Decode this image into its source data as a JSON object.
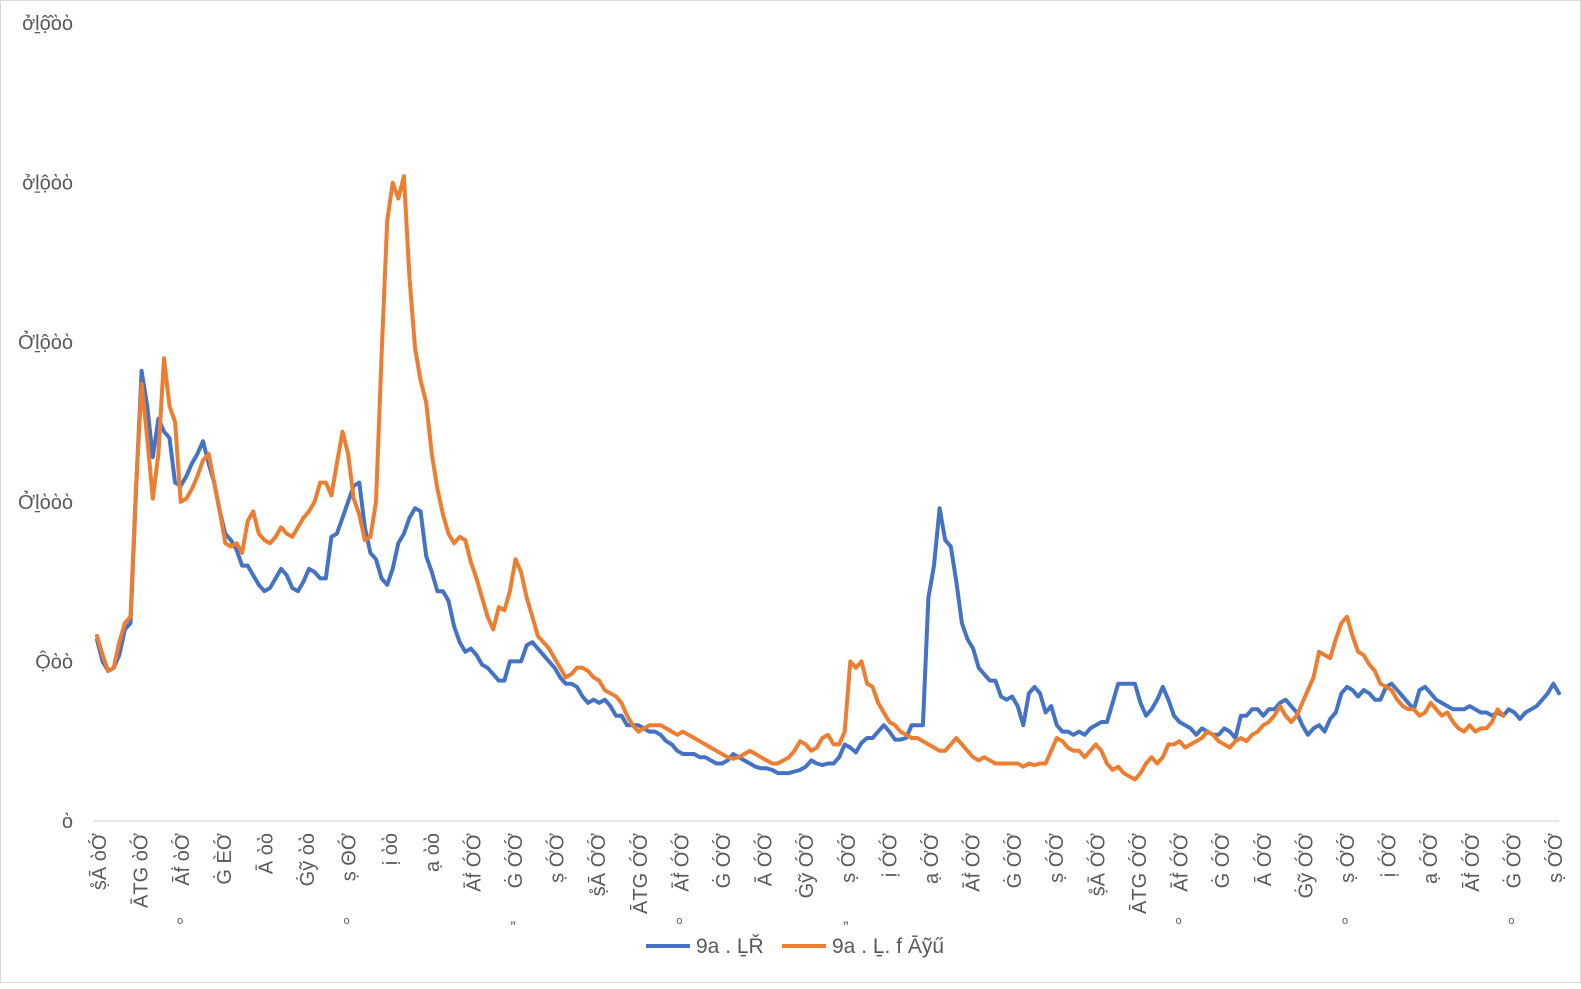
{
  "chart_data": {
    "type": "line",
    "title": "",
    "xlabel": "",
    "ylabel": "",
    "ylim": [
      0,
      2500
    ],
    "y_ticks": [
      {
        "value": 0,
        "label": "ὸ"
      },
      {
        "value": 500,
        "label": "Ộὸὸ"
      },
      {
        "value": 1000,
        "label": "Ởḻὸὸὸ"
      },
      {
        "value": 1500,
        "label": "Ởḻộὸὸ"
      },
      {
        "value": 2000,
        "label": "ởḻộὸὸ"
      },
      {
        "value": 2500,
        "label": "ởḻộ̂ὸὸ"
      }
    ],
    "x_tick_labels": [
      "ṣ̊Ā ὸỚ",
      "ĀTG ὸỚ",
      "Āḟ ὸỚ",
      "Ġ ÈỚ",
      "Ā ὸὸ",
      "Ġỹ ὸὸ",
      "ṣ ΘỚ",
      "ị ὸὸ",
      "ạ ὸὸ",
      "Āḟ ỚỚ",
      "Ġ ỚỚ",
      "ṣ ỚỚ",
      "ṣ̊Ā ỚỚ",
      "ĀTG ỚỚ",
      "Āḟ ỚỚ",
      "Ġ ỚỚ",
      "Ā ỚỚ",
      "Ġỹ ỚỚ",
      "ṣ ỚỚ",
      "ị ỚỚ",
      "ạ ỚỚ",
      "Āḟ ỚỚ",
      "Ġ ỚỚ",
      "ṣ ỚỚ",
      "ṣ̊Ā ỚỚ",
      "ĀTG ỚỚ",
      "Āḟ ỚỚ",
      "Ġ ỚỚ",
      "Ā ỚỚ",
      "Ġỹ ỚỚ",
      "ṣ ỚỚ",
      "ị ỚỚ",
      "ạ ỚỚ",
      "Āḟ ỚỚ",
      "Ġ ỚỚ",
      "ṣ ỚỚ"
    ],
    "x_tick_sublabels": [
      "ₒ",
      "ₒ",
      "ₒ",
      "„",
      "ₒ",
      "ₒ",
      "ₒ",
      "„"
    ],
    "series": [
      {
        "name": "9a . ḺŘ",
        "color": "#4472c4",
        "values": [
          568,
          500,
          470,
          480,
          520,
          600,
          620,
          1040,
          1410,
          1300,
          1140,
          1260,
          1220,
          1200,
          1060,
          1050,
          1080,
          1120,
          1150,
          1190,
          1120,
          1060,
          970,
          900,
          880,
          850,
          800,
          800,
          770,
          740,
          720,
          730,
          760,
          790,
          770,
          730,
          720,
          750,
          790,
          780,
          760,
          760,
          890,
          900,
          950,
          1000,
          1050,
          1060,
          920,
          840,
          820,
          760,
          740,
          790,
          870,
          900,
          950,
          980,
          970,
          830,
          780,
          720,
          720,
          690,
          610,
          560,
          530,
          540,
          520,
          490,
          480,
          460,
          440,
          440,
          500,
          500,
          500,
          550,
          560,
          540,
          520,
          500,
          480,
          450,
          430,
          430,
          420,
          390,
          370,
          380,
          370,
          380,
          360,
          330,
          330,
          300,
          300,
          300,
          290,
          280,
          280,
          270,
          250,
          240,
          220,
          210,
          210,
          210,
          200,
          200,
          190,
          180,
          180,
          190,
          210,
          200,
          190,
          180,
          170,
          165,
          165,
          160,
          150,
          150,
          150,
          155,
          160,
          170,
          190,
          180,
          175,
          180,
          180,
          200,
          240,
          230,
          215,
          245,
          260,
          260,
          280,
          300,
          280,
          255,
          255,
          260,
          300,
          300,
          300,
          700,
          800,
          980,
          880,
          860,
          750,
          620,
          570,
          540,
          480,
          460,
          440,
          440,
          390,
          380,
          390,
          360,
          300,
          400,
          420,
          400,
          340,
          360,
          300,
          280,
          280,
          270,
          280,
          270,
          290,
          300,
          310,
          310,
          370,
          430,
          430,
          430,
          430,
          370,
          330,
          350,
          380,
          420,
          380,
          330,
          310,
          300,
          290,
          270,
          290,
          280,
          270,
          270,
          290,
          280,
          260,
          330,
          330,
          350,
          350,
          330,
          350,
          350,
          370,
          380,
          360,
          340,
          300,
          270,
          290,
          300,
          280,
          320,
          340,
          400,
          420,
          410,
          390,
          410,
          400,
          380,
          380,
          420,
          430,
          410,
          390,
          370,
          350,
          410,
          420,
          400,
          380,
          370,
          360,
          350,
          350,
          350,
          360,
          350,
          340,
          340,
          330,
          340,
          330,
          350,
          340,
          320,
          340,
          350,
          360,
          380,
          400,
          430,
          400
        ]
      },
      {
        "name": "9a . Ḻ. f Āỹű",
        "color": "#ed7d31",
        "values": [
          580,
          520,
          470,
          480,
          560,
          620,
          640,
          1050,
          1370,
          1200,
          1010,
          1150,
          1450,
          1300,
          1250,
          1000,
          1010,
          1040,
          1080,
          1130,
          1150,
          1060,
          970,
          870,
          860,
          870,
          840,
          940,
          970,
          900,
          880,
          870,
          890,
          920,
          900,
          890,
          920,
          950,
          970,
          1000,
          1060,
          1060,
          1020,
          1120,
          1220,
          1150,
          1010,
          960,
          880,
          890,
          1000,
          1460,
          1880,
          2000,
          1950,
          2020,
          1700,
          1480,
          1380,
          1310,
          1150,
          1040,
          960,
          900,
          870,
          890,
          880,
          810,
          760,
          700,
          640,
          600,
          670,
          660,
          720,
          820,
          780,
          700,
          640,
          580,
          560,
          540,
          510,
          480,
          450,
          460,
          480,
          480,
          470,
          450,
          440,
          410,
          400,
          390,
          370,
          330,
          300,
          280,
          290,
          300,
          300,
          300,
          290,
          280,
          270,
          280,
          270,
          260,
          250,
          240,
          230,
          220,
          210,
          200,
          195,
          200,
          210,
          220,
          210,
          200,
          190,
          180,
          180,
          190,
          200,
          220,
          250,
          240,
          220,
          230,
          260,
          270,
          240,
          240,
          280,
          500,
          480,
          500,
          430,
          420,
          370,
          340,
          310,
          300,
          280,
          270,
          260,
          260,
          250,
          240,
          230,
          220,
          220,
          240,
          260,
          240,
          220,
          200,
          190,
          200,
          190,
          180,
          180,
          180,
          180,
          180,
          170,
          180,
          175,
          180,
          180,
          220,
          260,
          250,
          230,
          220,
          220,
          200,
          220,
          240,
          220,
          180,
          160,
          170,
          150,
          140,
          130,
          150,
          180,
          200,
          180,
          200,
          240,
          240,
          250,
          230,
          240,
          250,
          260,
          280,
          270,
          250,
          240,
          230,
          250,
          260,
          250,
          270,
          280,
          300,
          310,
          330,
          360,
          330,
          310,
          330,
          370,
          410,
          450,
          530,
          520,
          510,
          570,
          620,
          640,
          580,
          530,
          520,
          490,
          470,
          430,
          420,
          410,
          380,
          360,
          350,
          350,
          330,
          340,
          370,
          350,
          330,
          340,
          310,
          290,
          280,
          300,
          280,
          290,
          290,
          310,
          350,
          330
        ]
      }
    ],
    "legend_position": "bottom-center",
    "grid": false
  }
}
